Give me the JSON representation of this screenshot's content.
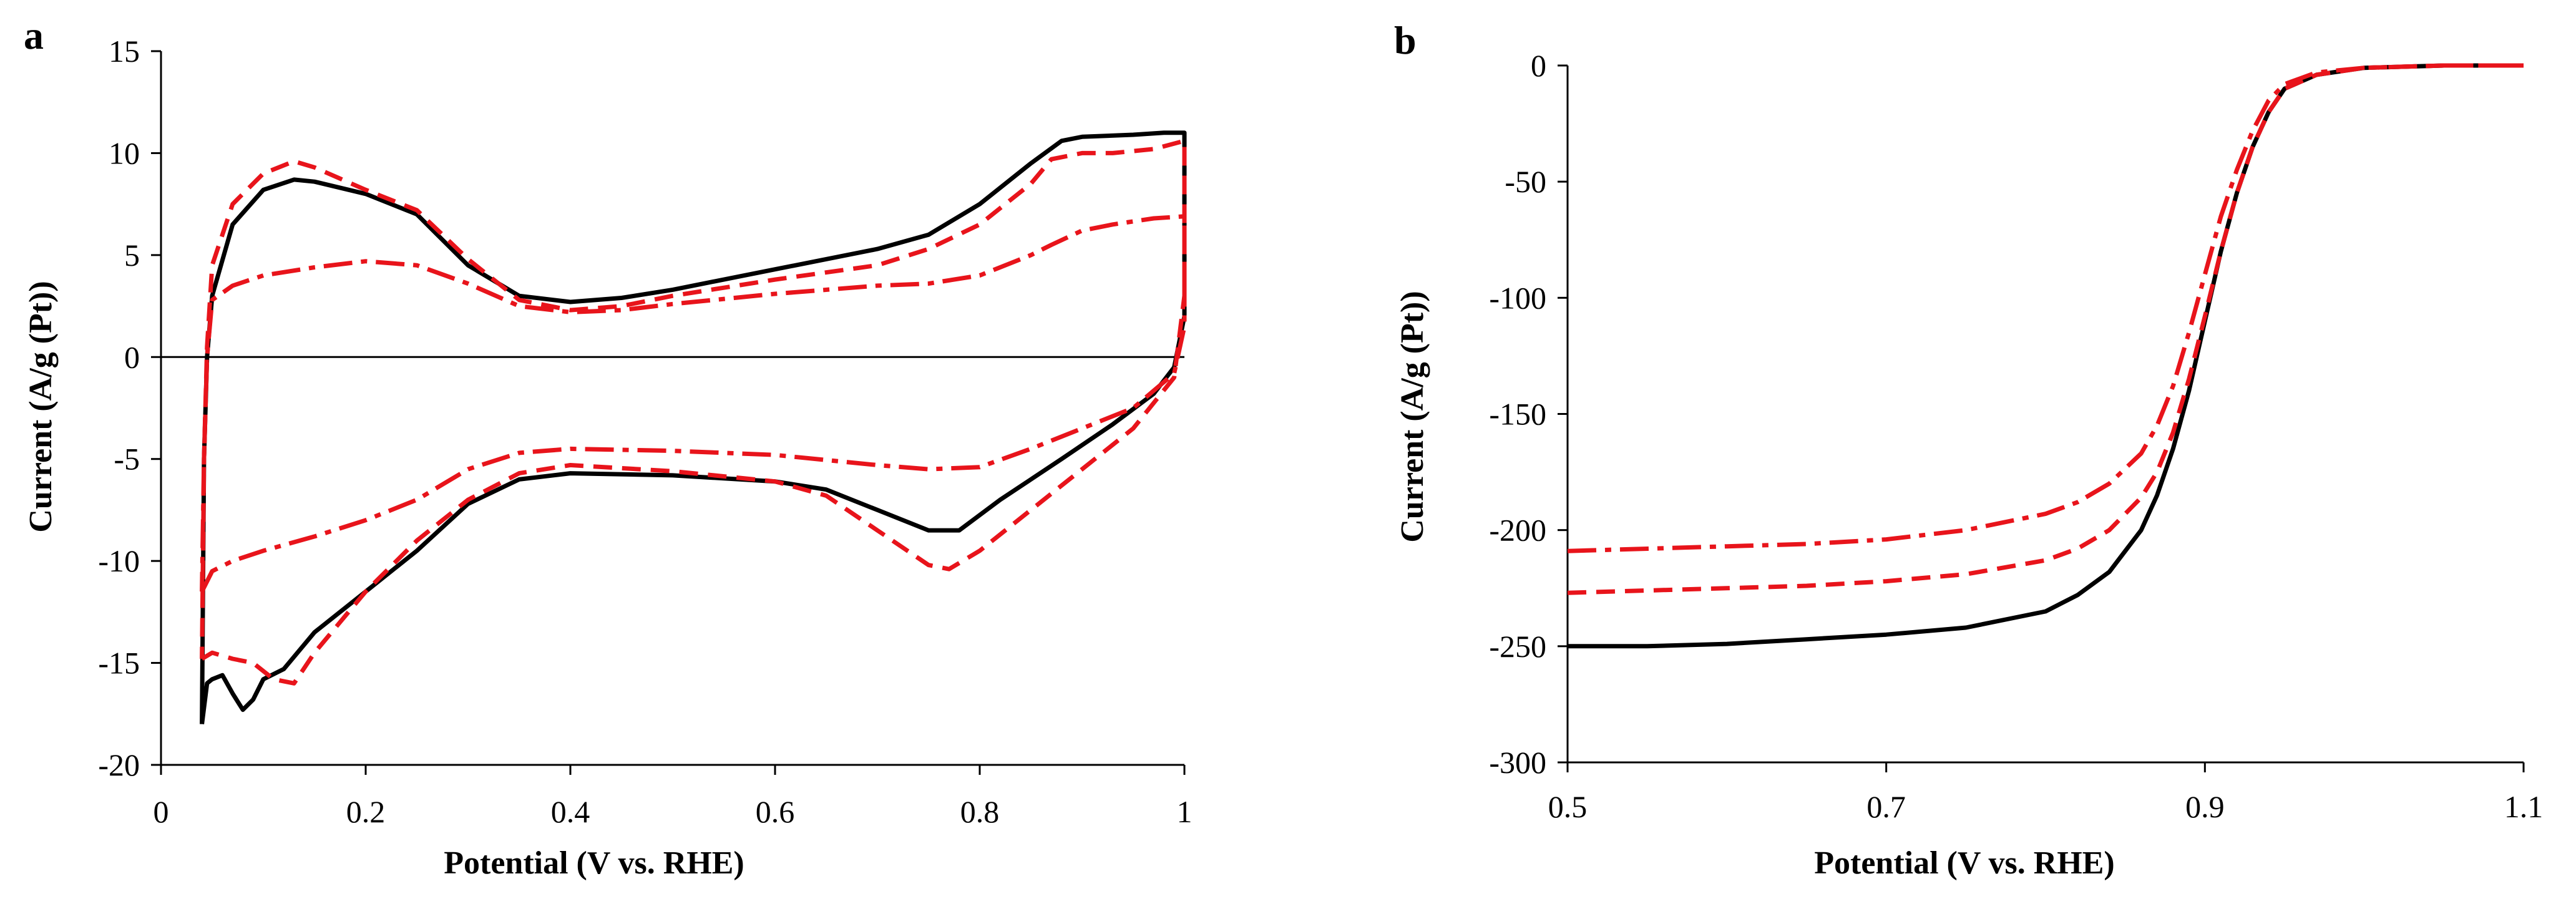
{
  "chart_data": [
    {
      "panel": "a",
      "type": "line",
      "title": "",
      "xlabel": "Potential (V vs. RHE)",
      "ylabel": "Current (A/g (Pt))",
      "xlim": [
        0,
        1
      ],
      "ylim": [
        -20,
        15
      ],
      "xticks": [
        0,
        0.2,
        0.4,
        0.6,
        0.8,
        1
      ],
      "xtick_labels": [
        "0",
        "0.2",
        "0.4",
        "0.6",
        "0.8",
        "1"
      ],
      "yticks": [
        15,
        10,
        5,
        0,
        -5,
        -10,
        -15,
        -20
      ],
      "ytick_labels": [
        "15",
        "10",
        "5",
        "0",
        "-5",
        "-10",
        "-15",
        "-20"
      ],
      "grid": false,
      "series": [
        {
          "name": "solid black",
          "color": "#000000",
          "style": "solid",
          "points": [
            [
              0.04,
              -18.0
            ],
            [
              0.045,
              -16.0
            ],
            [
              0.05,
              -15.8
            ],
            [
              0.06,
              -15.6
            ],
            [
              0.07,
              -16.5
            ],
            [
              0.08,
              -17.3
            ],
            [
              0.09,
              -16.8
            ],
            [
              0.1,
              -15.8
            ],
            [
              0.12,
              -15.3
            ],
            [
              0.15,
              -13.5
            ],
            [
              0.2,
              -11.5
            ],
            [
              0.25,
              -9.5
            ],
            [
              0.3,
              -7.2
            ],
            [
              0.35,
              -6.0
            ],
            [
              0.4,
              -5.7
            ],
            [
              0.5,
              -5.8
            ],
            [
              0.6,
              -6.1
            ],
            [
              0.65,
              -6.5
            ],
            [
              0.7,
              -7.5
            ],
            [
              0.75,
              -8.5
            ],
            [
              0.78,
              -8.5
            ],
            [
              0.82,
              -7.0
            ],
            [
              0.88,
              -5.0
            ],
            [
              0.93,
              -3.3
            ],
            [
              0.97,
              -1.8
            ],
            [
              0.99,
              -0.5
            ],
            [
              1.0,
              2.0
            ],
            [
              1.0,
              11.0
            ],
            [
              0.98,
              11.0
            ],
            [
              0.95,
              10.9
            ],
            [
              0.9,
              10.8
            ],
            [
              0.88,
              10.6
            ],
            [
              0.85,
              9.5
            ],
            [
              0.8,
              7.5
            ],
            [
              0.75,
              6.0
            ],
            [
              0.7,
              5.3
            ],
            [
              0.6,
              4.3
            ],
            [
              0.5,
              3.3
            ],
            [
              0.45,
              2.9
            ],
            [
              0.4,
              2.7
            ],
            [
              0.35,
              3.0
            ],
            [
              0.3,
              4.5
            ],
            [
              0.25,
              7.0
            ],
            [
              0.2,
              8.0
            ],
            [
              0.15,
              8.6
            ],
            [
              0.13,
              8.7
            ],
            [
              0.1,
              8.2
            ],
            [
              0.07,
              6.5
            ],
            [
              0.05,
              3.0
            ],
            [
              0.045,
              0.0
            ],
            [
              0.042,
              -5.0
            ],
            [
              0.04,
              -18.0
            ]
          ]
        },
        {
          "name": "red dashed",
          "color": "#e8141b",
          "style": "dashed",
          "points": [
            [
              0.04,
              -14.8
            ],
            [
              0.05,
              -14.5
            ],
            [
              0.07,
              -14.8
            ],
            [
              0.09,
              -15.0
            ],
            [
              0.11,
              -15.8
            ],
            [
              0.13,
              -16.0
            ],
            [
              0.15,
              -14.5
            ],
            [
              0.2,
              -11.5
            ],
            [
              0.25,
              -9.0
            ],
            [
              0.3,
              -7.0
            ],
            [
              0.35,
              -5.7
            ],
            [
              0.4,
              -5.3
            ],
            [
              0.5,
              -5.6
            ],
            [
              0.6,
              -6.1
            ],
            [
              0.65,
              -6.8
            ],
            [
              0.7,
              -8.5
            ],
            [
              0.75,
              -10.2
            ],
            [
              0.77,
              -10.4
            ],
            [
              0.8,
              -9.5
            ],
            [
              0.85,
              -7.5
            ],
            [
              0.9,
              -5.5
            ],
            [
              0.95,
              -3.5
            ],
            [
              0.99,
              -1.0
            ],
            [
              1.0,
              3.0
            ],
            [
              1.0,
              10.6
            ],
            [
              0.97,
              10.2
            ],
            [
              0.93,
              10.0
            ],
            [
              0.9,
              10.0
            ],
            [
              0.87,
              9.7
            ],
            [
              0.85,
              8.5
            ],
            [
              0.8,
              6.5
            ],
            [
              0.75,
              5.3
            ],
            [
              0.7,
              4.5
            ],
            [
              0.6,
              3.8
            ],
            [
              0.5,
              3.0
            ],
            [
              0.45,
              2.5
            ],
            [
              0.4,
              2.3
            ],
            [
              0.35,
              2.8
            ],
            [
              0.3,
              4.8
            ],
            [
              0.25,
              7.2
            ],
            [
              0.2,
              8.2
            ],
            [
              0.15,
              9.3
            ],
            [
              0.13,
              9.6
            ],
            [
              0.1,
              9.0
            ],
            [
              0.07,
              7.5
            ],
            [
              0.05,
              4.5
            ],
            [
              0.045,
              0.5
            ],
            [
              0.042,
              -5.0
            ],
            [
              0.04,
              -14.8
            ]
          ]
        },
        {
          "name": "red dash-dot",
          "color": "#e8141b",
          "style": "dashdot",
          "points": [
            [
              0.04,
              -11.5
            ],
            [
              0.05,
              -10.5
            ],
            [
              0.07,
              -10.0
            ],
            [
              0.1,
              -9.5
            ],
            [
              0.15,
              -8.8
            ],
            [
              0.2,
              -8.0
            ],
            [
              0.25,
              -7.0
            ],
            [
              0.3,
              -5.5
            ],
            [
              0.35,
              -4.7
            ],
            [
              0.4,
              -4.5
            ],
            [
              0.5,
              -4.6
            ],
            [
              0.6,
              -4.8
            ],
            [
              0.7,
              -5.3
            ],
            [
              0.75,
              -5.5
            ],
            [
              0.8,
              -5.4
            ],
            [
              0.85,
              -4.5
            ],
            [
              0.9,
              -3.5
            ],
            [
              0.95,
              -2.5
            ],
            [
              0.99,
              -0.8
            ],
            [
              1.0,
              1.5
            ],
            [
              1.0,
              6.9
            ],
            [
              0.97,
              6.8
            ],
            [
              0.93,
              6.5
            ],
            [
              0.9,
              6.2
            ],
            [
              0.87,
              5.5
            ],
            [
              0.85,
              5.0
            ],
            [
              0.8,
              4.0
            ],
            [
              0.75,
              3.6
            ],
            [
              0.7,
              3.5
            ],
            [
              0.6,
              3.1
            ],
            [
              0.5,
              2.6
            ],
            [
              0.45,
              2.3
            ],
            [
              0.4,
              2.2
            ],
            [
              0.35,
              2.5
            ],
            [
              0.3,
              3.6
            ],
            [
              0.25,
              4.5
            ],
            [
              0.2,
              4.7
            ],
            [
              0.15,
              4.4
            ],
            [
              0.1,
              4.0
            ],
            [
              0.07,
              3.5
            ],
            [
              0.05,
              2.8
            ],
            [
              0.045,
              0.0
            ],
            [
              0.042,
              -5.0
            ],
            [
              0.04,
              -11.5
            ]
          ]
        }
      ]
    },
    {
      "panel": "b",
      "type": "line",
      "title": "",
      "xlabel": "Potential (V vs. RHE)",
      "ylabel": "Current (A/g (Pt))",
      "xlim": [
        0.5,
        1.1
      ],
      "ylim": [
        -300,
        0
      ],
      "xticks": [
        0.5,
        0.7,
        0.9,
        1.1
      ],
      "xtick_labels": [
        "0.5",
        "0.7",
        "0.9",
        "1.1"
      ],
      "yticks": [
        0,
        -50,
        -100,
        -150,
        -200,
        -250,
        -300
      ],
      "ytick_labels": [
        "0",
        "-50",
        "-100",
        "-150",
        "-200",
        "-250",
        "-300"
      ],
      "grid": false,
      "series": [
        {
          "name": "solid black",
          "color": "#000000",
          "style": "solid",
          "points": [
            [
              0.5,
              -250
            ],
            [
              0.55,
              -250
            ],
            [
              0.6,
              -249
            ],
            [
              0.65,
              -247
            ],
            [
              0.7,
              -245
            ],
            [
              0.75,
              -242
            ],
            [
              0.8,
              -235
            ],
            [
              0.82,
              -228
            ],
            [
              0.84,
              -218
            ],
            [
              0.86,
              -200
            ],
            [
              0.87,
              -185
            ],
            [
              0.88,
              -165
            ],
            [
              0.89,
              -140
            ],
            [
              0.9,
              -110
            ],
            [
              0.91,
              -80
            ],
            [
              0.92,
              -55
            ],
            [
              0.93,
              -35
            ],
            [
              0.94,
              -20
            ],
            [
              0.95,
              -10
            ],
            [
              0.97,
              -4
            ],
            [
              1.0,
              -1
            ],
            [
              1.05,
              0
            ],
            [
              1.1,
              0
            ]
          ]
        },
        {
          "name": "red dashed",
          "color": "#e8141b",
          "style": "dashed",
          "points": [
            [
              0.5,
              -227
            ],
            [
              0.55,
              -226
            ],
            [
              0.6,
              -225
            ],
            [
              0.65,
              -224
            ],
            [
              0.7,
              -222
            ],
            [
              0.75,
              -219
            ],
            [
              0.8,
              -213
            ],
            [
              0.82,
              -208
            ],
            [
              0.84,
              -200
            ],
            [
              0.86,
              -186
            ],
            [
              0.87,
              -175
            ],
            [
              0.88,
              -158
            ],
            [
              0.89,
              -135
            ],
            [
              0.9,
              -108
            ],
            [
              0.91,
              -80
            ],
            [
              0.92,
              -55
            ],
            [
              0.93,
              -35
            ],
            [
              0.94,
              -20
            ],
            [
              0.95,
              -10
            ],
            [
              0.97,
              -4
            ],
            [
              1.0,
              -1
            ],
            [
              1.05,
              0
            ],
            [
              1.1,
              0
            ]
          ]
        },
        {
          "name": "red dash-dot",
          "color": "#e8141b",
          "style": "dashdot",
          "points": [
            [
              0.5,
              -209
            ],
            [
              0.55,
              -208
            ],
            [
              0.6,
              -207
            ],
            [
              0.65,
              -206
            ],
            [
              0.7,
              -204
            ],
            [
              0.75,
              -200
            ],
            [
              0.8,
              -193
            ],
            [
              0.82,
              -188
            ],
            [
              0.84,
              -180
            ],
            [
              0.86,
              -167
            ],
            [
              0.87,
              -155
            ],
            [
              0.88,
              -138
            ],
            [
              0.89,
              -115
            ],
            [
              0.9,
              -90
            ],
            [
              0.91,
              -65
            ],
            [
              0.92,
              -45
            ],
            [
              0.93,
              -28
            ],
            [
              0.94,
              -15
            ],
            [
              0.95,
              -8
            ],
            [
              0.97,
              -3
            ],
            [
              1.0,
              -1
            ],
            [
              1.05,
              0
            ],
            [
              1.1,
              0
            ]
          ]
        }
      ]
    }
  ]
}
